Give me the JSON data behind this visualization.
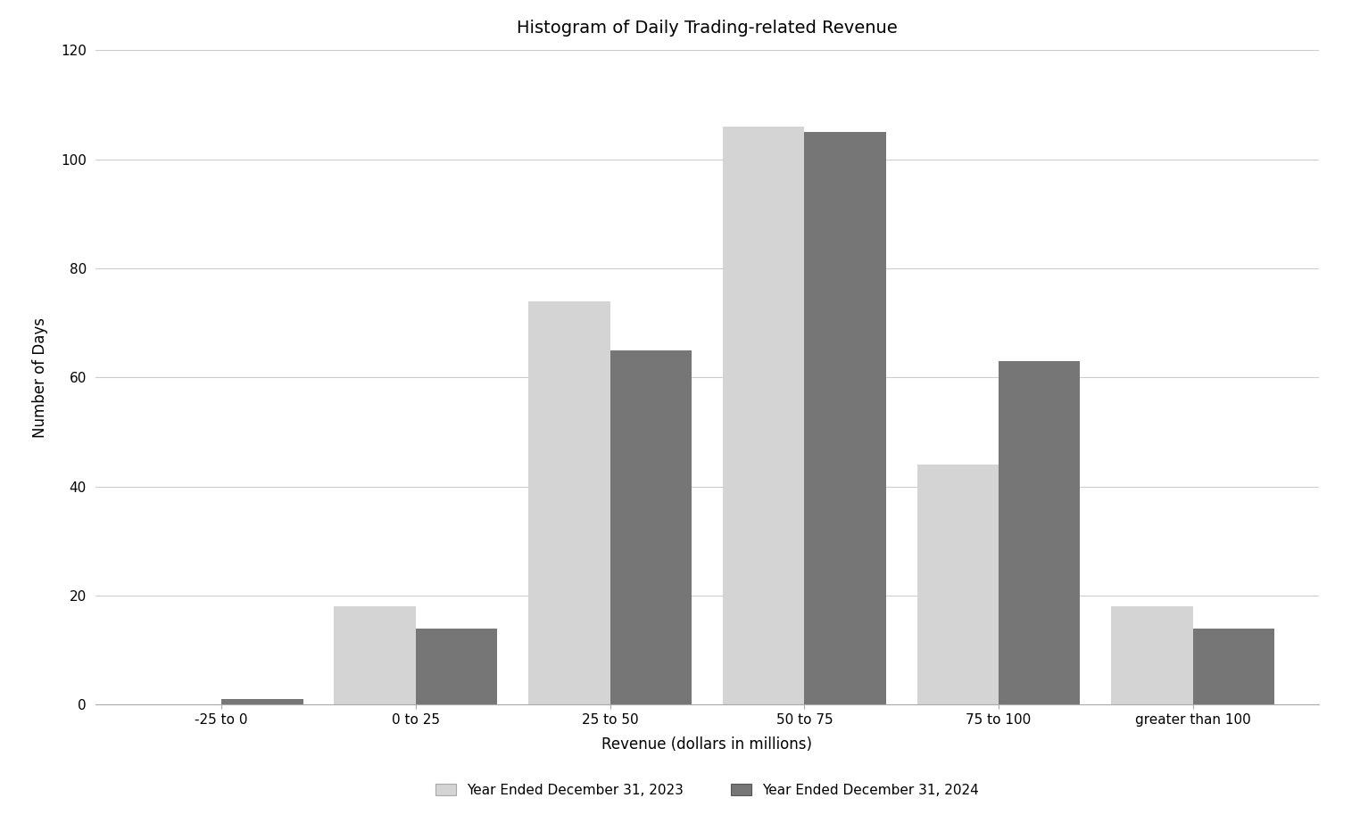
{
  "title": "Histogram of Daily Trading-related Revenue",
  "xlabel": "Revenue (dollars in millions)",
  "ylabel": "Number of Days",
  "categories": [
    "-25 to 0",
    "0 to 25",
    "25 to 50",
    "50 to 75",
    "75 to 100",
    "greater than 100"
  ],
  "values_2023": [
    0,
    18,
    74,
    106,
    44,
    18
  ],
  "values_2024": [
    1,
    14,
    65,
    105,
    63,
    14
  ],
  "color_2023": "#d4d4d4",
  "color_2024": "#767676",
  "legend_2023": "Year Ended December 31, 2023",
  "legend_2024": "Year Ended December 31, 2024",
  "ylim": [
    0,
    120
  ],
  "yticks": [
    0,
    20,
    40,
    60,
    80,
    100,
    120
  ],
  "bar_width": 0.42,
  "background_color": "#ffffff",
  "title_fontsize": 14,
  "axis_fontsize": 12,
  "tick_fontsize": 11,
  "legend_fontsize": 11
}
